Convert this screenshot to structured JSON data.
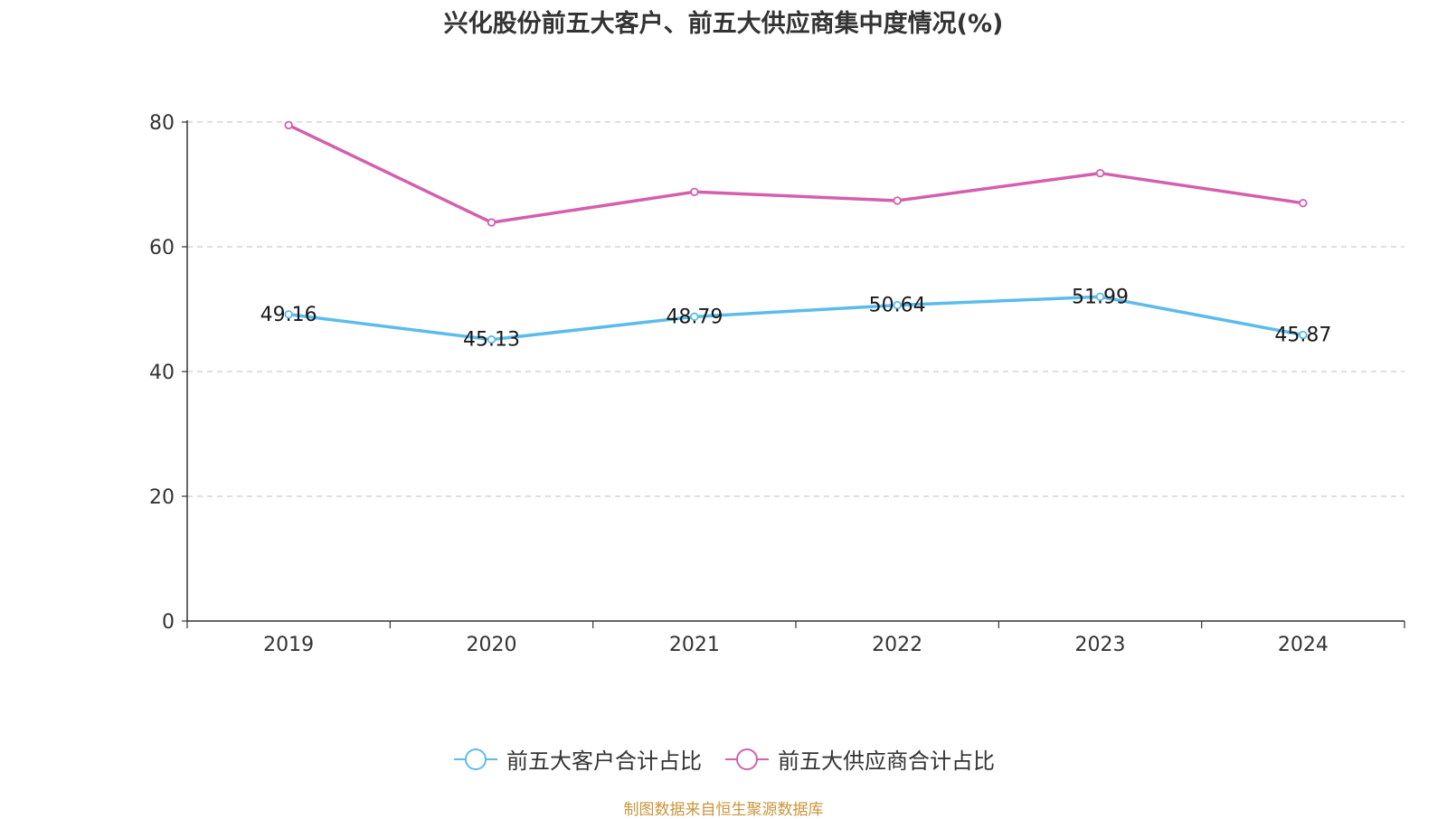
{
  "chart_data": {
    "type": "line",
    "title": "兴化股份前五大客户、前五大供应商集中度情况(%)",
    "categories": [
      "2019",
      "2020",
      "2021",
      "2022",
      "2023",
      "2024"
    ],
    "ylim": [
      0,
      80
    ],
    "yticks": [
      0,
      20,
      40,
      60,
      80
    ],
    "grid": true,
    "legend_position": "bottom",
    "series": [
      {
        "name": "前五大客户合计占比",
        "color": "#5bbcec",
        "values": [
          49.16,
          45.13,
          48.79,
          50.64,
          51.99,
          45.87
        ],
        "labels": [
          "49.16",
          "45.13",
          "48.79",
          "50.64",
          "51.99",
          "45.87"
        ]
      },
      {
        "name": "前五大供应商合计占比",
        "color": "#d45fae",
        "values": [
          79.5,
          63.9,
          68.8,
          67.4,
          71.8,
          67.0
        ]
      }
    ]
  },
  "footer": {
    "source": "制图数据来自恒生聚源数据库"
  }
}
